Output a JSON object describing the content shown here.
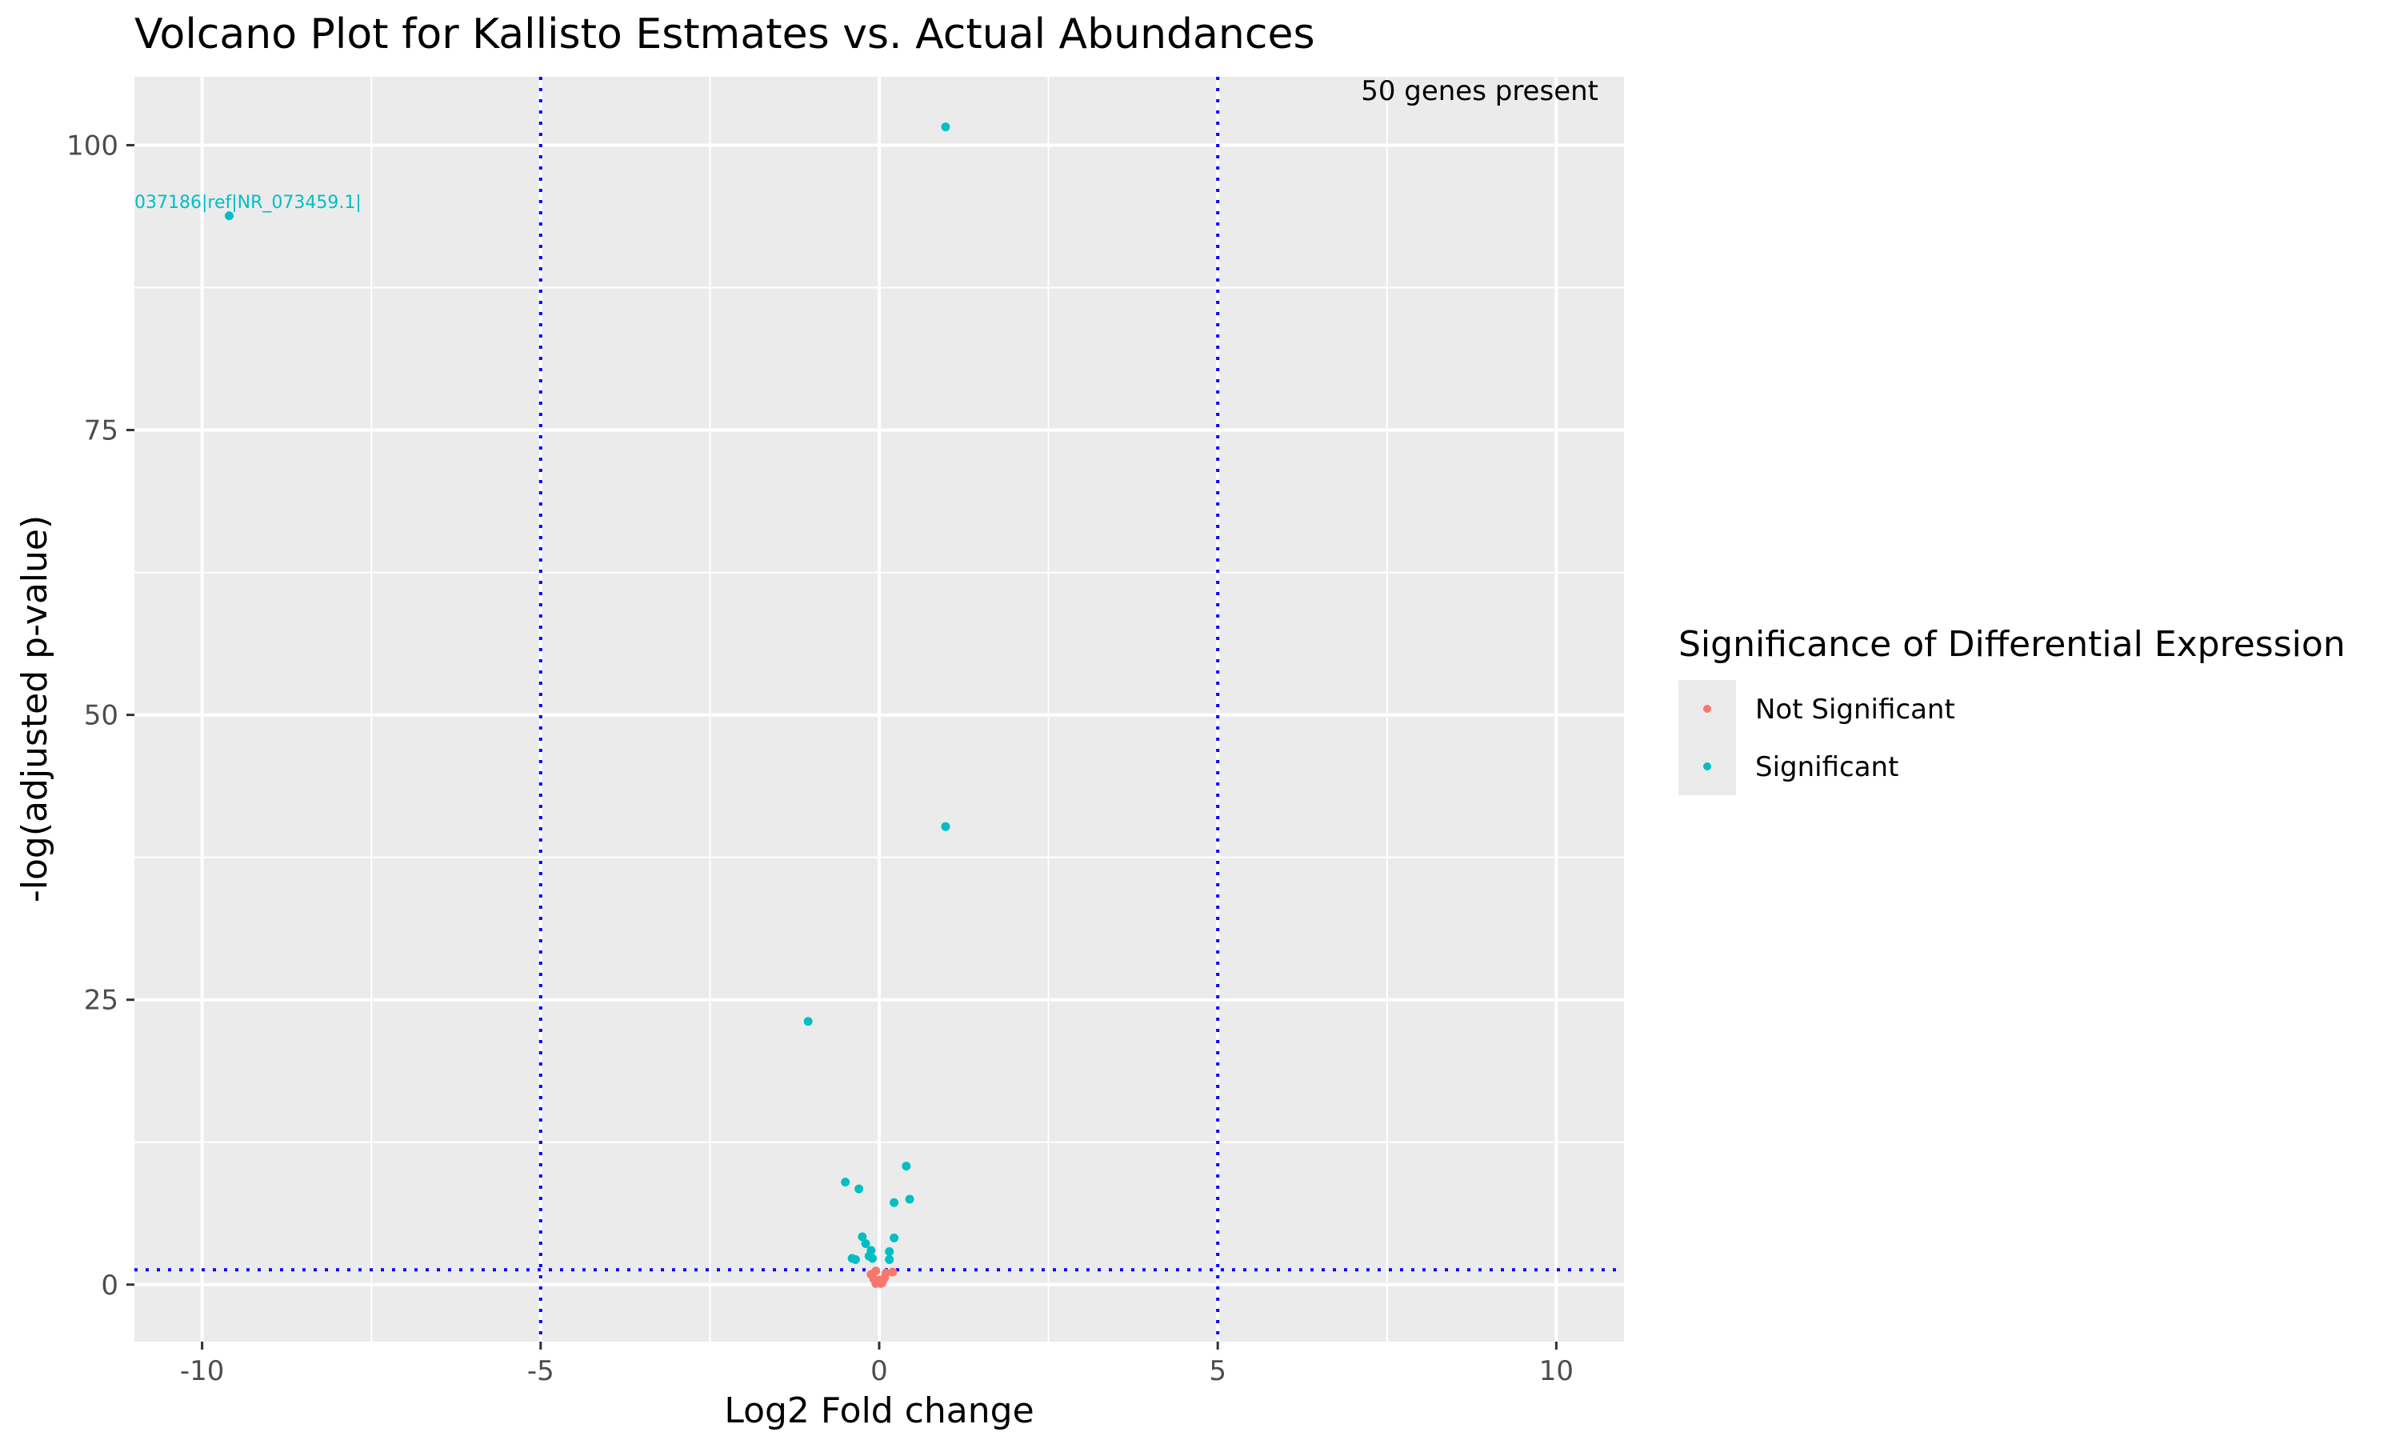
{
  "chart_data": {
    "type": "scatter",
    "title": "Volcano Plot for Kallisto Estmates vs. Actual Abundances",
    "xlabel": "Log2 Fold change",
    "ylabel": "-log(adjusted p-value)",
    "xlim": [
      -11,
      11
    ],
    "ylim": [
      -5,
      106
    ],
    "x_ticks": [
      -10,
      -5,
      0,
      5,
      10
    ],
    "x_tick_labels": [
      "-10",
      "-5",
      "0",
      "5",
      "10"
    ],
    "y_ticks": [
      0,
      25,
      50,
      75,
      100
    ],
    "y_tick_labels": [
      "0",
      "25",
      "50",
      "75",
      "100"
    ],
    "grid": true,
    "legend": {
      "title": "Significance of Differential Expression",
      "position": "right",
      "entries": [
        "Not Significant",
        "Significant"
      ]
    },
    "colors": {
      "Not Significant": "#F8766D",
      "Significant": "#00BFC4",
      "threshold_line": "#0000FF",
      "panel_bg": "#EBEBEB",
      "grid": "#FFFFFF"
    },
    "thresholds": {
      "x": [
        -5,
        5
      ],
      "y": 1.3
    },
    "annotation": "50 genes present",
    "point_label": {
      "text": "037186|ref|NR_073459.1|",
      "series": "Significant",
      "x": -9.6,
      "y": 93.8
    },
    "series": [
      {
        "name": "Significant",
        "points": [
          [
            0.98,
            101.6
          ],
          [
            -9.6,
            93.8
          ],
          [
            0.98,
            40.2
          ],
          [
            -1.05,
            23.1
          ],
          [
            0.4,
            10.4
          ],
          [
            -0.5,
            9.0
          ],
          [
            -0.3,
            8.4
          ],
          [
            0.45,
            7.5
          ],
          [
            0.22,
            7.2
          ],
          [
            -0.25,
            4.2
          ],
          [
            0.22,
            4.1
          ],
          [
            -0.2,
            3.6
          ],
          [
            -0.12,
            3.0
          ],
          [
            0.15,
            2.9
          ],
          [
            -0.15,
            2.5
          ],
          [
            -0.1,
            2.3
          ],
          [
            0.15,
            2.2
          ],
          [
            -0.4,
            2.3
          ],
          [
            -0.35,
            2.2
          ]
        ]
      },
      {
        "name": "Not Significant",
        "points": [
          [
            -0.05,
            1.2
          ],
          [
            -0.12,
            0.9
          ],
          [
            0.2,
            1.1
          ],
          [
            0.1,
            1.0
          ],
          [
            0.0,
            0.4
          ],
          [
            -0.02,
            0.2
          ],
          [
            0.05,
            0.3
          ],
          [
            -0.05,
            0.1
          ],
          [
            0.02,
            0.1
          ],
          [
            0.08,
            0.6
          ],
          [
            -0.08,
            0.5
          ],
          [
            0.04,
            0.15
          ]
        ]
      }
    ]
  }
}
